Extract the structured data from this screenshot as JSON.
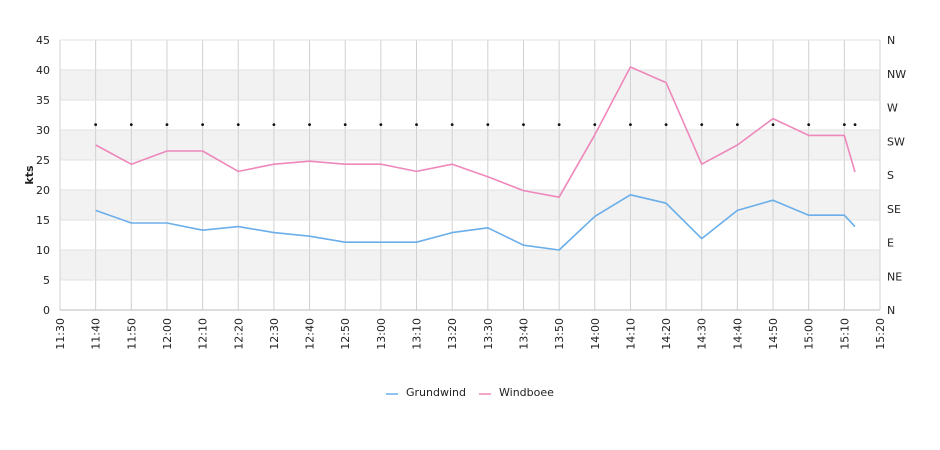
{
  "chart_data": {
    "type": "line",
    "title": "",
    "xlabel": "",
    "ylabel": "kts",
    "ylim": [
      0,
      45
    ],
    "yticks": [
      0,
      5,
      10,
      15,
      20,
      25,
      30,
      35,
      40,
      45
    ],
    "x_ticks": [
      "11:30",
      "11:40",
      "11:50",
      "12:00",
      "12:10",
      "12:20",
      "12:30",
      "12:40",
      "12:50",
      "13:00",
      "13:10",
      "13:20",
      "13:30",
      "13:40",
      "13:50",
      "14:00",
      "14:10",
      "14:20",
      "14:30",
      "14:40",
      "14:50",
      "15:00",
      "15:10",
      "15:20"
    ],
    "right_axis_labels": [
      "N",
      "NE",
      "E",
      "SE",
      "S",
      "SW",
      "W",
      "NW",
      "N"
    ],
    "grid": true,
    "legend_position": "bottom",
    "x": [
      "11:40",
      "11:50",
      "12:00",
      "12:10",
      "12:20",
      "12:30",
      "12:40",
      "12:50",
      "13:00",
      "13:10",
      "13:20",
      "13:30",
      "13:40",
      "13:50",
      "14:00",
      "14:10",
      "14:20",
      "14:30",
      "14:40",
      "14:50",
      "15:00",
      "15:10",
      "15:13"
    ],
    "series": [
      {
        "name": "Grundwind",
        "color": "#6aaeea",
        "values": [
          16.6,
          14.5,
          14.5,
          13.3,
          13.9,
          12.9,
          12.3,
          11.3,
          11.3,
          11.3,
          12.9,
          13.7,
          10.8,
          10.0,
          15.6,
          19.2,
          17.8,
          11.9,
          16.6,
          18.3,
          15.8,
          15.8,
          13.9
        ]
      },
      {
        "name": "Windboee",
        "color": "#ee88bb",
        "values": [
          27.5,
          24.3,
          26.5,
          26.5,
          23.1,
          24.3,
          24.8,
          24.3,
          24.3,
          23.1,
          24.3,
          22.2,
          19.9,
          18.8,
          29.2,
          40.5,
          37.9,
          24.3,
          27.5,
          31.9,
          29.1,
          29.1,
          23.0
        ]
      },
      {
        "name": "direction",
        "color": "#111111",
        "values": [
          30.9,
          30.9,
          30.9,
          30.9,
          30.9,
          30.9,
          30.9,
          30.9,
          30.9,
          30.9,
          30.9,
          30.9,
          30.9,
          30.9,
          30.9,
          30.9,
          30.9,
          30.9,
          30.9,
          30.9,
          30.9,
          30.9,
          30.9
        ]
      }
    ]
  }
}
